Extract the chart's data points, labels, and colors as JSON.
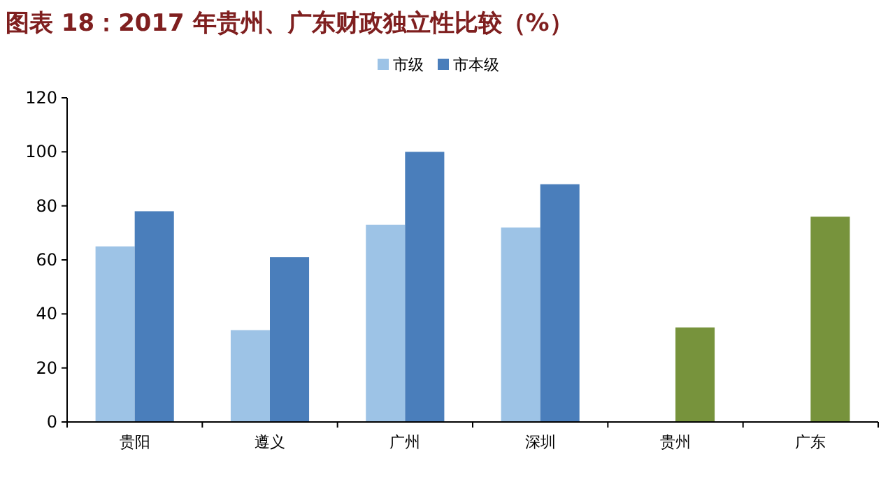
{
  "chart_data": {
    "type": "bar",
    "title": "图表 18：2017 年贵州、广东财政独立性比较（%）",
    "categories": [
      "贵阳",
      "遵义",
      "广州",
      "深圳",
      "贵州",
      "广东"
    ],
    "series": [
      {
        "name": "市级",
        "color": "#9dc3e6",
        "values": [
          65,
          34,
          73,
          72,
          null,
          null
        ]
      },
      {
        "name": "市本级",
        "color": "#4a7ebb",
        "colors": [
          "#4a7ebb",
          "#4a7ebb",
          "#4a7ebb",
          "#4a7ebb",
          "#77933c",
          "#77933c"
        ],
        "values": [
          78,
          61,
          100,
          88,
          35,
          76
        ]
      }
    ],
    "ylim": [
      0,
      120
    ],
    "yticks": [
      0,
      20,
      40,
      60,
      80,
      100,
      120
    ],
    "grid": false,
    "legend": "top"
  }
}
